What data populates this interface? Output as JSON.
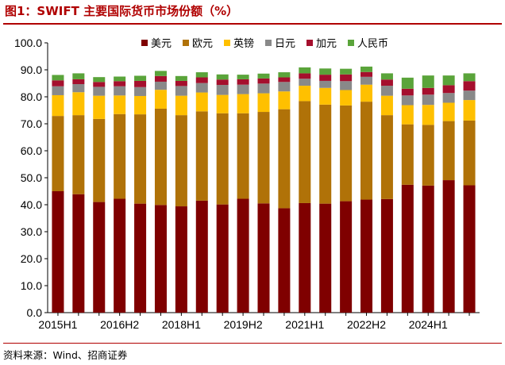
{
  "figure": {
    "title": "图1：SWIFT 主要国际货币市场份额（%）",
    "source": "资料来源：Wind、招商证券"
  },
  "colors": {
    "title": "#b00000",
    "usd": "#7f0000",
    "eur": "#b07208",
    "gbp": "#ffc000",
    "jpy": "#898989",
    "cad": "#a50f2d",
    "cny": "#5aa43a"
  },
  "chart_data": {
    "type": "bar",
    "stacked": true,
    "title": "SWIFT 主要国际货币市场份额（%）",
    "xlabel": "",
    "ylabel": "",
    "ylim": [
      0,
      100
    ],
    "yticks": [
      0.0,
      10.0,
      20.0,
      30.0,
      40.0,
      50.0,
      60.0,
      70.0,
      80.0,
      90.0,
      100.0
    ],
    "grid": false,
    "legend_position": "top-right",
    "categories": [
      "2015H1",
      "2015H2",
      "2016H1",
      "2016H2",
      "2017H1",
      "2017H2",
      "2018H1",
      "2018H2",
      "2019H1",
      "2019H2",
      "2020H1",
      "2020H2",
      "2021H1",
      "2021H2",
      "2022H1",
      "2022H2",
      "2023H1",
      "2023H2",
      "2024H1",
      "2024H2",
      "2025H1"
    ],
    "xtick_labels": [
      "2015H1",
      "",
      "",
      "2016H2",
      "",
      "",
      "2018H1",
      "",
      "",
      "2019H2",
      "",
      "",
      "2021H1",
      "",
      "",
      "2022H2",
      "",
      "",
      "2024H1",
      "",
      ""
    ],
    "series": [
      {
        "name": "美元",
        "color_key": "usd",
        "values": [
          45.0,
          43.9,
          41.0,
          42.2,
          40.4,
          39.9,
          39.4,
          41.5,
          40.1,
          42.2,
          40.5,
          38.7,
          40.6,
          40.4,
          41.3,
          41.9,
          42.1,
          47.4,
          47.1,
          49.1,
          47.2
        ]
      },
      {
        "name": "欧元",
        "color_key": "eur",
        "values": [
          27.9,
          29.3,
          30.8,
          31.4,
          33.1,
          35.7,
          33.8,
          33.1,
          33.8,
          31.7,
          33.9,
          36.7,
          37.8,
          36.7,
          35.5,
          36.3,
          31.1,
          22.4,
          22.5,
          21.9,
          24.0
        ]
      },
      {
        "name": "英镑",
        "color_key": "gbp",
        "values": [
          7.7,
          8.5,
          8.6,
          6.9,
          6.8,
          7.0,
          7.2,
          7.0,
          6.8,
          7.1,
          6.9,
          6.6,
          5.7,
          6.2,
          5.7,
          6.3,
          7.2,
          7.1,
          7.4,
          6.8,
          7.6
        ]
      },
      {
        "name": "日元",
        "color_key": "jpy",
        "values": [
          3.3,
          3.0,
          3.3,
          3.4,
          3.3,
          3.0,
          3.6,
          3.5,
          3.7,
          3.5,
          3.6,
          3.5,
          2.6,
          2.6,
          3.3,
          2.9,
          3.7,
          3.6,
          3.8,
          3.6,
          3.5
        ]
      },
      {
        "name": "加元",
        "color_key": "cad",
        "values": [
          2.2,
          1.8,
          1.8,
          1.9,
          2.3,
          2.1,
          1.9,
          2.1,
          2.0,
          2.0,
          1.9,
          1.7,
          2.0,
          2.3,
          2.5,
          1.8,
          2.3,
          2.5,
          2.5,
          2.9,
          3.5
        ]
      },
      {
        "name": "人民币",
        "color_key": "cny",
        "values": [
          2.0,
          2.2,
          1.8,
          1.7,
          1.9,
          1.9,
          1.8,
          1.9,
          1.9,
          1.7,
          1.8,
          1.9,
          2.2,
          2.3,
          2.1,
          2.0,
          2.3,
          4.1,
          4.6,
          3.6,
          2.9
        ]
      }
    ]
  }
}
